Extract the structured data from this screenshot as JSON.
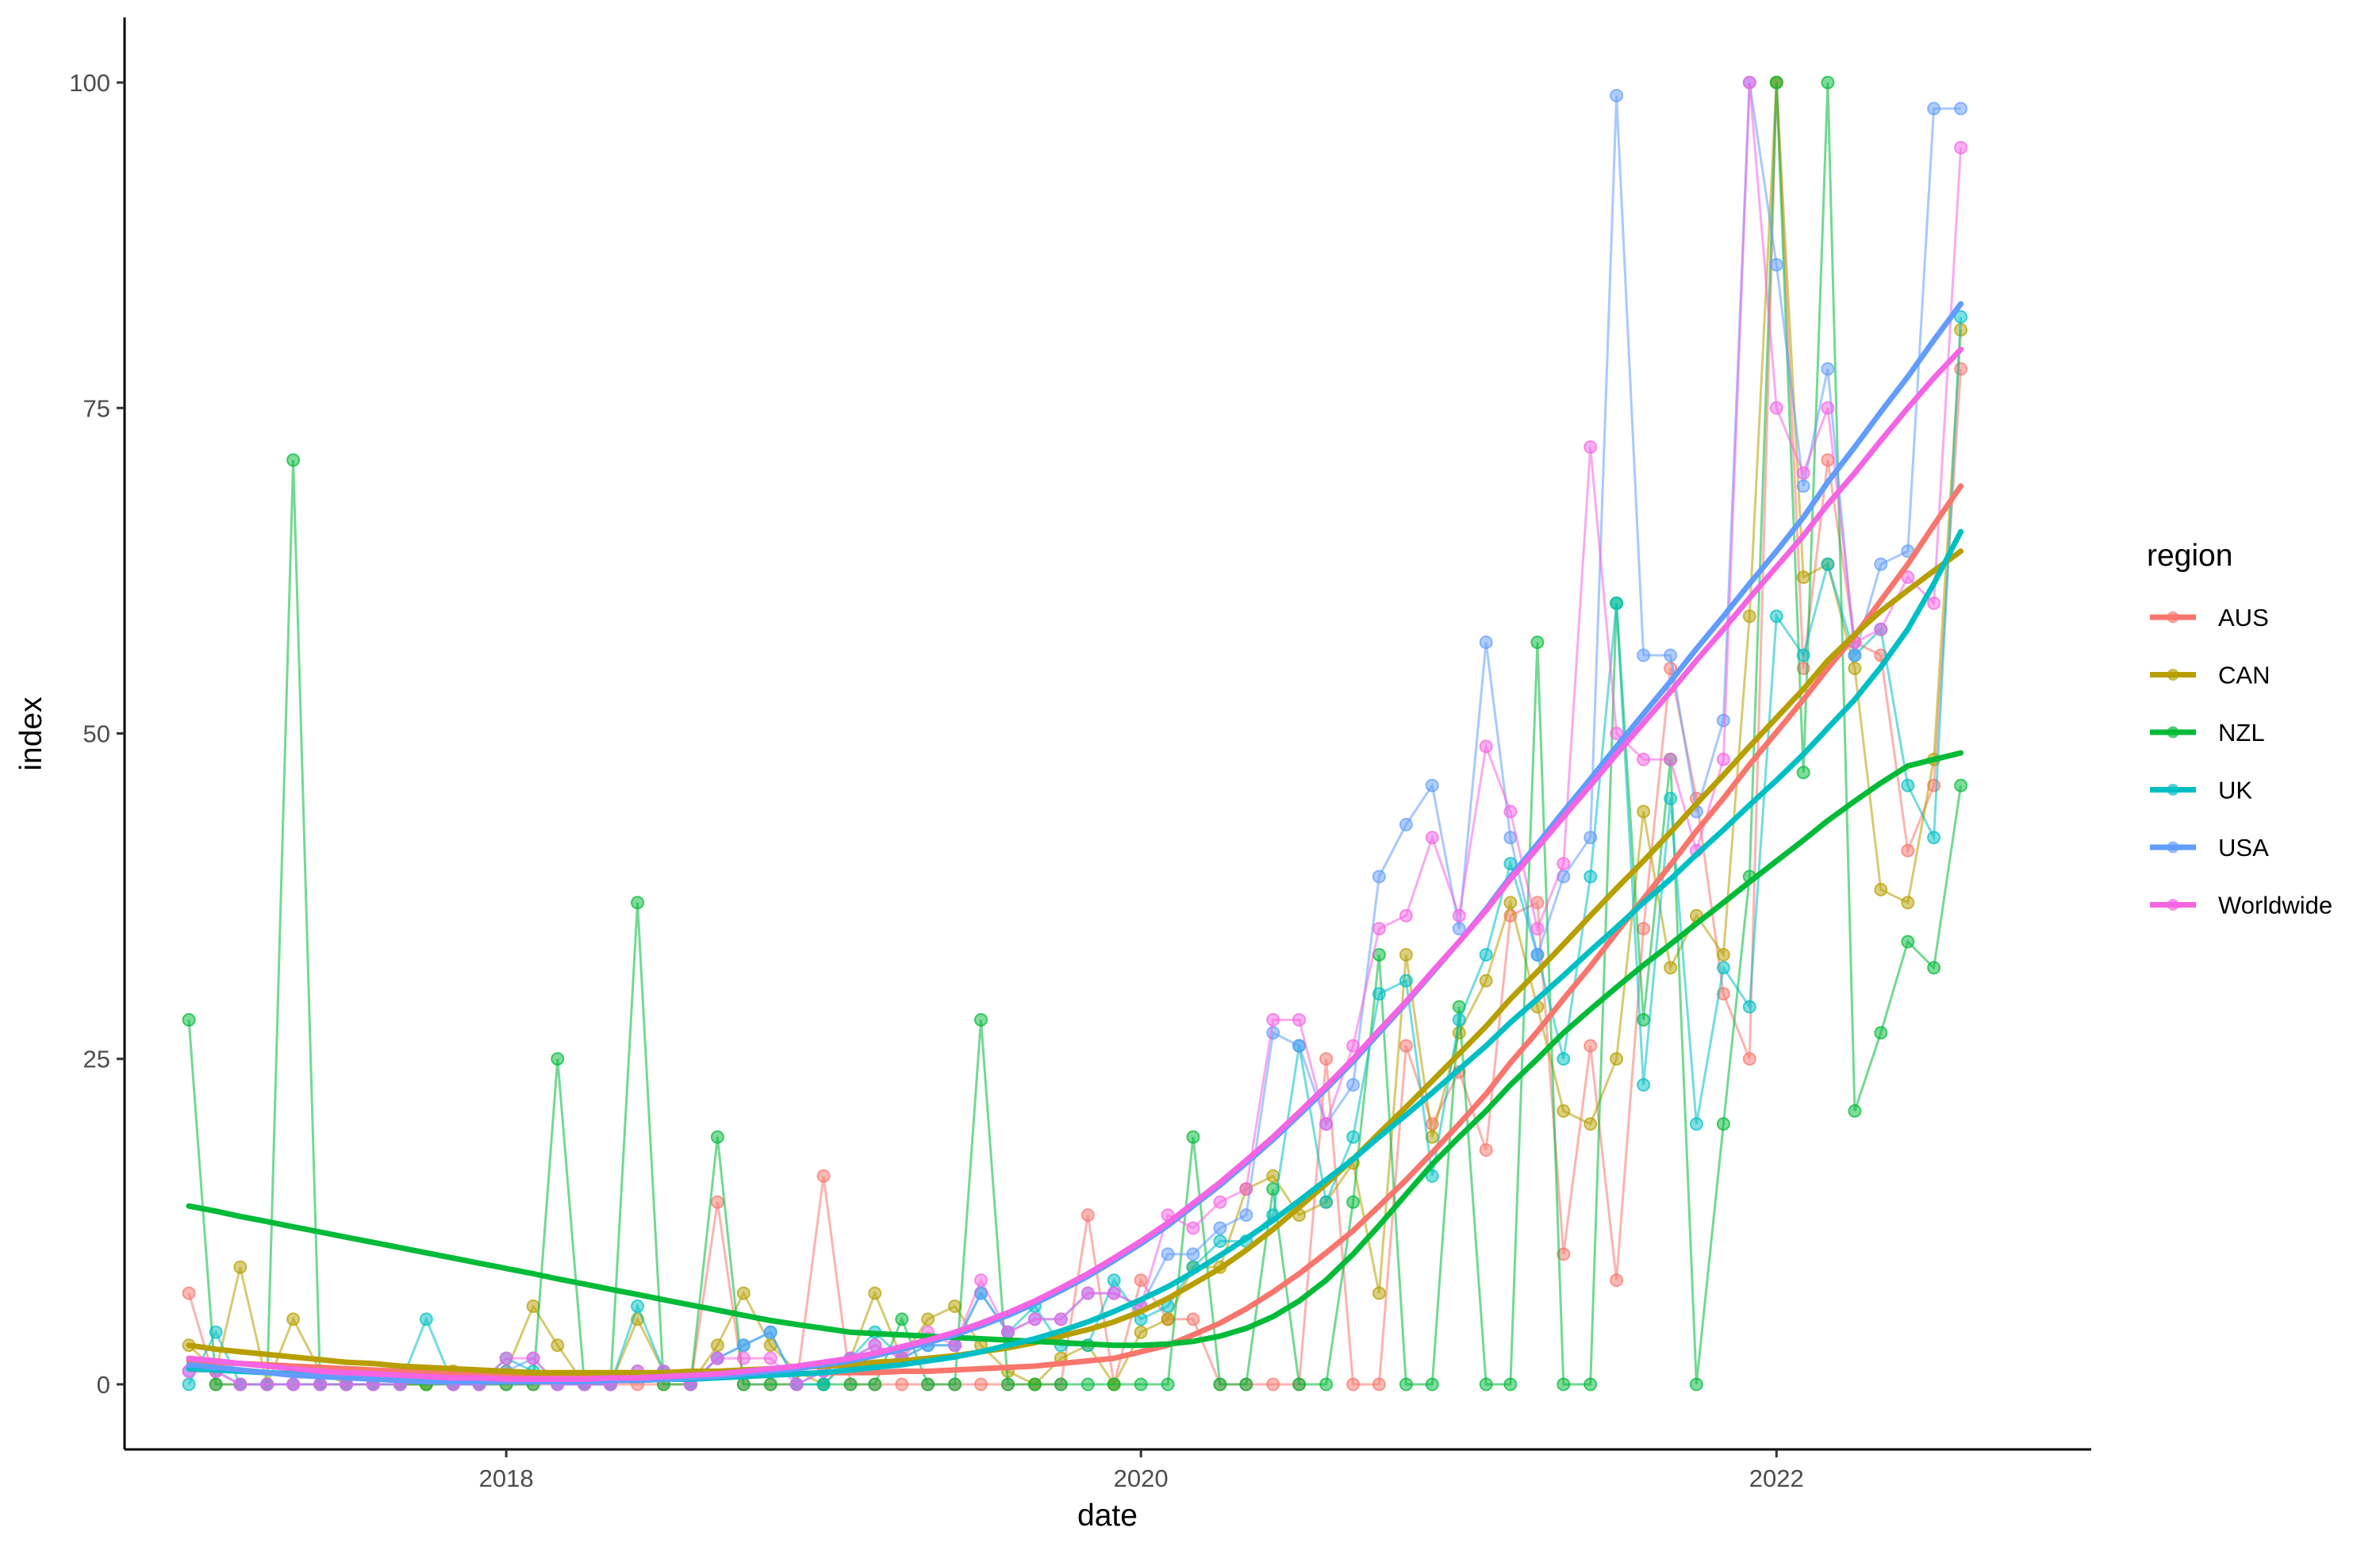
{
  "chart_data": {
    "type": "line",
    "xlabel": "date",
    "ylabel": "index",
    "x_ticks": [
      "2018",
      "2020",
      "2022"
    ],
    "y_ticks": [
      0,
      25,
      50,
      75,
      100
    ],
    "xlim": [
      "2016-10-19",
      "2022-12-29"
    ],
    "ylim": [
      -5,
      105
    ],
    "grid": false,
    "legend": {
      "title": "region",
      "position": "right"
    },
    "x": [
      "2017-01-01",
      "2017-02-01",
      "2017-03-01",
      "2017-04-01",
      "2017-05-01",
      "2017-06-01",
      "2017-07-01",
      "2017-08-01",
      "2017-09-01",
      "2017-10-01",
      "2017-11-01",
      "2017-12-01",
      "2018-01-01",
      "2018-02-01",
      "2018-03-01",
      "2018-04-01",
      "2018-05-01",
      "2018-06-01",
      "2018-07-01",
      "2018-08-01",
      "2018-09-01",
      "2018-10-01",
      "2018-11-01",
      "2018-12-01",
      "2019-01-01",
      "2019-02-01",
      "2019-03-01",
      "2019-04-01",
      "2019-05-01",
      "2019-06-01",
      "2019-07-01",
      "2019-08-01",
      "2019-09-01",
      "2019-10-01",
      "2019-11-01",
      "2019-12-01",
      "2020-01-01",
      "2020-02-01",
      "2020-03-01",
      "2020-04-01",
      "2020-05-01",
      "2020-06-01",
      "2020-07-01",
      "2020-08-01",
      "2020-09-01",
      "2020-10-01",
      "2020-11-01",
      "2020-12-01",
      "2021-01-01",
      "2021-02-01",
      "2021-03-01",
      "2021-04-01",
      "2021-05-01",
      "2021-06-01",
      "2021-07-01",
      "2021-08-01",
      "2021-09-01",
      "2021-10-01",
      "2021-11-01",
      "2021-12-01",
      "2022-01-01",
      "2022-02-01",
      "2022-03-01",
      "2022-04-01",
      "2022-05-01",
      "2022-06-01",
      "2022-07-01",
      "2022-08-01"
    ],
    "series": [
      {
        "name": "AUS",
        "color": "#F8766D",
        "values": [
          7,
          0,
          0,
          0,
          0,
          0,
          0,
          0,
          0,
          0,
          0,
          0,
          0,
          0,
          0,
          0,
          0,
          0,
          0,
          0,
          14,
          0,
          0,
          0,
          16,
          0,
          0,
          0,
          0,
          0,
          0,
          0,
          0,
          0,
          13,
          0,
          8,
          5,
          5,
          0,
          0,
          0,
          0,
          25,
          0,
          0,
          26,
          20,
          24,
          18,
          36,
          37,
          10,
          26,
          8,
          35,
          55,
          45,
          30,
          25,
          100,
          55,
          71,
          57,
          56,
          41,
          46,
          78
        ],
        "trend": [
          1.8,
          1.7,
          1.6,
          1.5,
          1.4,
          1.3,
          1.2,
          1.1,
          1.0,
          1.0,
          0.9,
          0.9,
          0.8,
          0.8,
          0.8,
          0.8,
          0.8,
          0.8,
          0.8,
          0.8,
          0.8,
          0.8,
          0.8,
          0.8,
          0.9,
          0.9,
          0.9,
          1.0,
          1.0,
          1.1,
          1.2,
          1.3,
          1.4,
          1.6,
          1.8,
          2.0,
          2.5,
          3.0,
          3.8,
          4.7,
          5.8,
          7.1,
          8.5,
          10.1,
          11.8,
          13.7,
          15.7,
          17.8,
          20.0,
          22.3,
          24.7,
          27.1,
          29.6,
          32.1,
          34.7,
          37.3,
          39.9,
          42.5,
          45.0,
          47.6,
          50.1,
          52.6,
          55.0,
          57.5,
          60.2,
          63.0,
          66.0,
          69.0
        ]
      },
      {
        "name": "CAN",
        "color": "#B79F00",
        "values": [
          3,
          1,
          9,
          0,
          5,
          1,
          0,
          0,
          0,
          0,
          1,
          0,
          1,
          6,
          3,
          0,
          0,
          5,
          1,
          0,
          3,
          7,
          3,
          1,
          0,
          2,
          7,
          2,
          5,
          6,
          3,
          1,
          0,
          2,
          3,
          0,
          4,
          5,
          9,
          9,
          15,
          16,
          13,
          14,
          17,
          7,
          33,
          19,
          27,
          31,
          37,
          29,
          21,
          20,
          25,
          44,
          32,
          36,
          33,
          59,
          100,
          62,
          63,
          55,
          38,
          37,
          48,
          81
        ],
        "trend": [
          3.0,
          2.7,
          2.5,
          2.3,
          2.1,
          1.9,
          1.7,
          1.6,
          1.4,
          1.3,
          1.2,
          1.1,
          1.0,
          0.9,
          0.9,
          0.9,
          0.9,
          0.9,
          0.9,
          1.0,
          1.0,
          1.1,
          1.2,
          1.3,
          1.4,
          1.5,
          1.7,
          1.8,
          2.0,
          2.2,
          2.5,
          2.8,
          3.2,
          3.7,
          4.2,
          4.8,
          5.6,
          6.6,
          7.7,
          8.9,
          10.3,
          11.9,
          13.6,
          15.4,
          17.3,
          19.3,
          21.3,
          23.3,
          25.4,
          27.5,
          29.6,
          31.7,
          33.8,
          36.0,
          38.1,
          40.2,
          42.4,
          44.6,
          46.8,
          49.0,
          51.2,
          53.4,
          55.6,
          57.6,
          59.4,
          61.0,
          62.5,
          64.0
        ]
      },
      {
        "name": "NZL",
        "color": "#00BA38",
        "values": [
          28,
          0,
          0,
          0,
          71,
          0,
          0,
          0,
          0,
          0,
          0,
          0,
          0,
          0,
          25,
          0,
          0,
          37,
          0,
          0,
          19,
          0,
          0,
          0,
          0,
          0,
          0,
          5,
          0,
          0,
          28,
          0,
          0,
          0,
          0,
          0,
          0,
          0,
          19,
          0,
          0,
          15,
          0,
          0,
          14,
          33,
          0,
          0,
          29,
          0,
          0,
          57,
          0,
          0,
          60,
          28,
          48,
          0,
          20,
          39,
          100,
          47,
          100,
          21,
          27,
          34,
          32,
          46
        ],
        "trend": [
          13.7,
          13.3,
          12.9,
          12.5,
          12.1,
          11.7,
          11.3,
          10.9,
          10.5,
          10.1,
          9.7,
          9.3,
          8.9,
          8.5,
          8.1,
          7.7,
          7.3,
          6.9,
          6.5,
          6.1,
          5.7,
          5.3,
          4.9,
          4.6,
          4.3,
          4.0,
          3.9,
          3.8,
          3.7,
          3.6,
          3.5,
          3.4,
          3.3,
          3.2,
          3.1,
          3.0,
          3.0,
          3.1,
          3.3,
          3.7,
          4.3,
          5.2,
          6.4,
          8.0,
          10.0,
          12.2,
          14.6,
          16.9,
          19.0,
          21.0,
          23.0,
          25.0,
          27.0,
          28.8,
          30.5,
          32.2,
          33.8,
          35.4,
          37.0,
          38.6,
          40.2,
          41.8,
          43.3,
          44.8,
          46.2,
          47.5,
          48.0,
          48.5
        ]
      },
      {
        "name": "UK",
        "color": "#00BFC4",
        "values": [
          0,
          4,
          0,
          0,
          0,
          0,
          0,
          0,
          0,
          5,
          0,
          0,
          2,
          1,
          0,
          0,
          0,
          6,
          1,
          0,
          2,
          3,
          4,
          0,
          0,
          2,
          4,
          2,
          3,
          3,
          7,
          4,
          6,
          3,
          3,
          8,
          5,
          6,
          9,
          11,
          11,
          13,
          26,
          14,
          19,
          30,
          31,
          16,
          28,
          33,
          40,
          33,
          25,
          39,
          60,
          23,
          45,
          20,
          32,
          29,
          59,
          56,
          63,
          56,
          58,
          46,
          42,
          82
        ],
        "trend": [
          1.2,
          1.1,
          1.0,
          0.9,
          0.8,
          0.7,
          0.6,
          0.5,
          0.5,
          0.4,
          0.4,
          0.3,
          0.3,
          0.3,
          0.3,
          0.3,
          0.3,
          0.3,
          0.4,
          0.4,
          0.5,
          0.6,
          0.7,
          0.8,
          0.9,
          1.1,
          1.3,
          1.5,
          1.8,
          2.1,
          2.5,
          3.0,
          3.5,
          4.1,
          4.8,
          5.6,
          6.5,
          7.5,
          8.6,
          9.9,
          11.2,
          12.6,
          14.1,
          15.7,
          17.3,
          19.0,
          20.7,
          22.4,
          24.2,
          26.0,
          27.8,
          29.6,
          31.4,
          33.3,
          35.1,
          37.0,
          38.8,
          40.7,
          42.6,
          44.5,
          46.4,
          48.4,
          50.4,
          52.6,
          55.1,
          58.0,
          61.5,
          65.5
        ]
      },
      {
        "name": "USA",
        "color": "#619CFF",
        "values": [
          1,
          1,
          0,
          0,
          0,
          0,
          0,
          0,
          0,
          1,
          0,
          0,
          1,
          2,
          0,
          0,
          0,
          1,
          1,
          0,
          2,
          3,
          4,
          0,
          1,
          2,
          3,
          2,
          3,
          3,
          7,
          4,
          5,
          5,
          7,
          7,
          6,
          10,
          10,
          12,
          13,
          27,
          26,
          20,
          23,
          39,
          43,
          46,
          35,
          57,
          42,
          33,
          39,
          42,
          99,
          56,
          56,
          44,
          51,
          100,
          86,
          69,
          78,
          56,
          63,
          64,
          98,
          98
        ],
        "trend": [
          1.5,
          1.3,
          1.1,
          0.9,
          0.7,
          0.6,
          0.5,
          0.4,
          0.3,
          0.2,
          0.2,
          0.2,
          0.2,
          0.2,
          0.2,
          0.2,
          0.3,
          0.3,
          0.4,
          0.5,
          0.6,
          0.8,
          1.0,
          1.2,
          1.5,
          1.8,
          2.2,
          2.7,
          3.2,
          3.8,
          4.5,
          5.3,
          6.2,
          7.2,
          8.3,
          9.5,
          10.8,
          12.2,
          13.7,
          15.3,
          17.0,
          18.8,
          20.7,
          22.7,
          24.8,
          27.0,
          29.3,
          31.6,
          34.0,
          36.5,
          39.0,
          41.5,
          44.0,
          46.5,
          49.0,
          51.5,
          54.0,
          56.5,
          59.0,
          61.5,
          64.0,
          66.6,
          69.3,
          72.0,
          74.7,
          77.4,
          80.2,
          83.0
        ]
      },
      {
        "name": "Worldwide",
        "color": "#F564E3",
        "values": [
          1,
          1,
          0,
          0,
          0,
          0,
          0,
          0,
          0,
          1,
          0,
          0,
          2,
          2,
          0,
          0,
          0,
          1,
          1,
          0,
          2,
          2,
          2,
          0,
          1,
          2,
          3,
          2,
          4,
          3,
          8,
          4,
          5,
          5,
          7,
          7,
          6,
          13,
          12,
          14,
          15,
          28,
          28,
          20,
          26,
          35,
          36,
          42,
          36,
          49,
          44,
          35,
          40,
          72,
          50,
          48,
          48,
          41,
          48,
          100,
          75,
          70,
          75,
          57,
          58,
          62,
          60,
          95
        ],
        "trend": [
          2.0,
          1.8,
          1.6,
          1.4,
          1.2,
          1.0,
          0.9,
          0.8,
          0.7,
          0.6,
          0.5,
          0.5,
          0.4,
          0.4,
          0.4,
          0.4,
          0.5,
          0.5,
          0.6,
          0.7,
          0.8,
          1.0,
          1.2,
          1.4,
          1.7,
          2.0,
          2.4,
          2.9,
          3.4,
          4.0,
          4.7,
          5.5,
          6.4,
          7.4,
          8.5,
          9.7,
          11.0,
          12.4,
          13.9,
          15.5,
          17.2,
          19.0,
          20.9,
          22.9,
          25.0,
          27.2,
          29.4,
          31.7,
          34.0,
          36.4,
          38.8,
          41.2,
          43.6,
          46.0,
          48.4,
          50.8,
          53.2,
          55.6,
          58.0,
          60.4,
          62.8,
          65.2,
          67.6,
          70.0,
          72.5,
          75.0,
          77.3,
          79.5
        ]
      }
    ]
  }
}
